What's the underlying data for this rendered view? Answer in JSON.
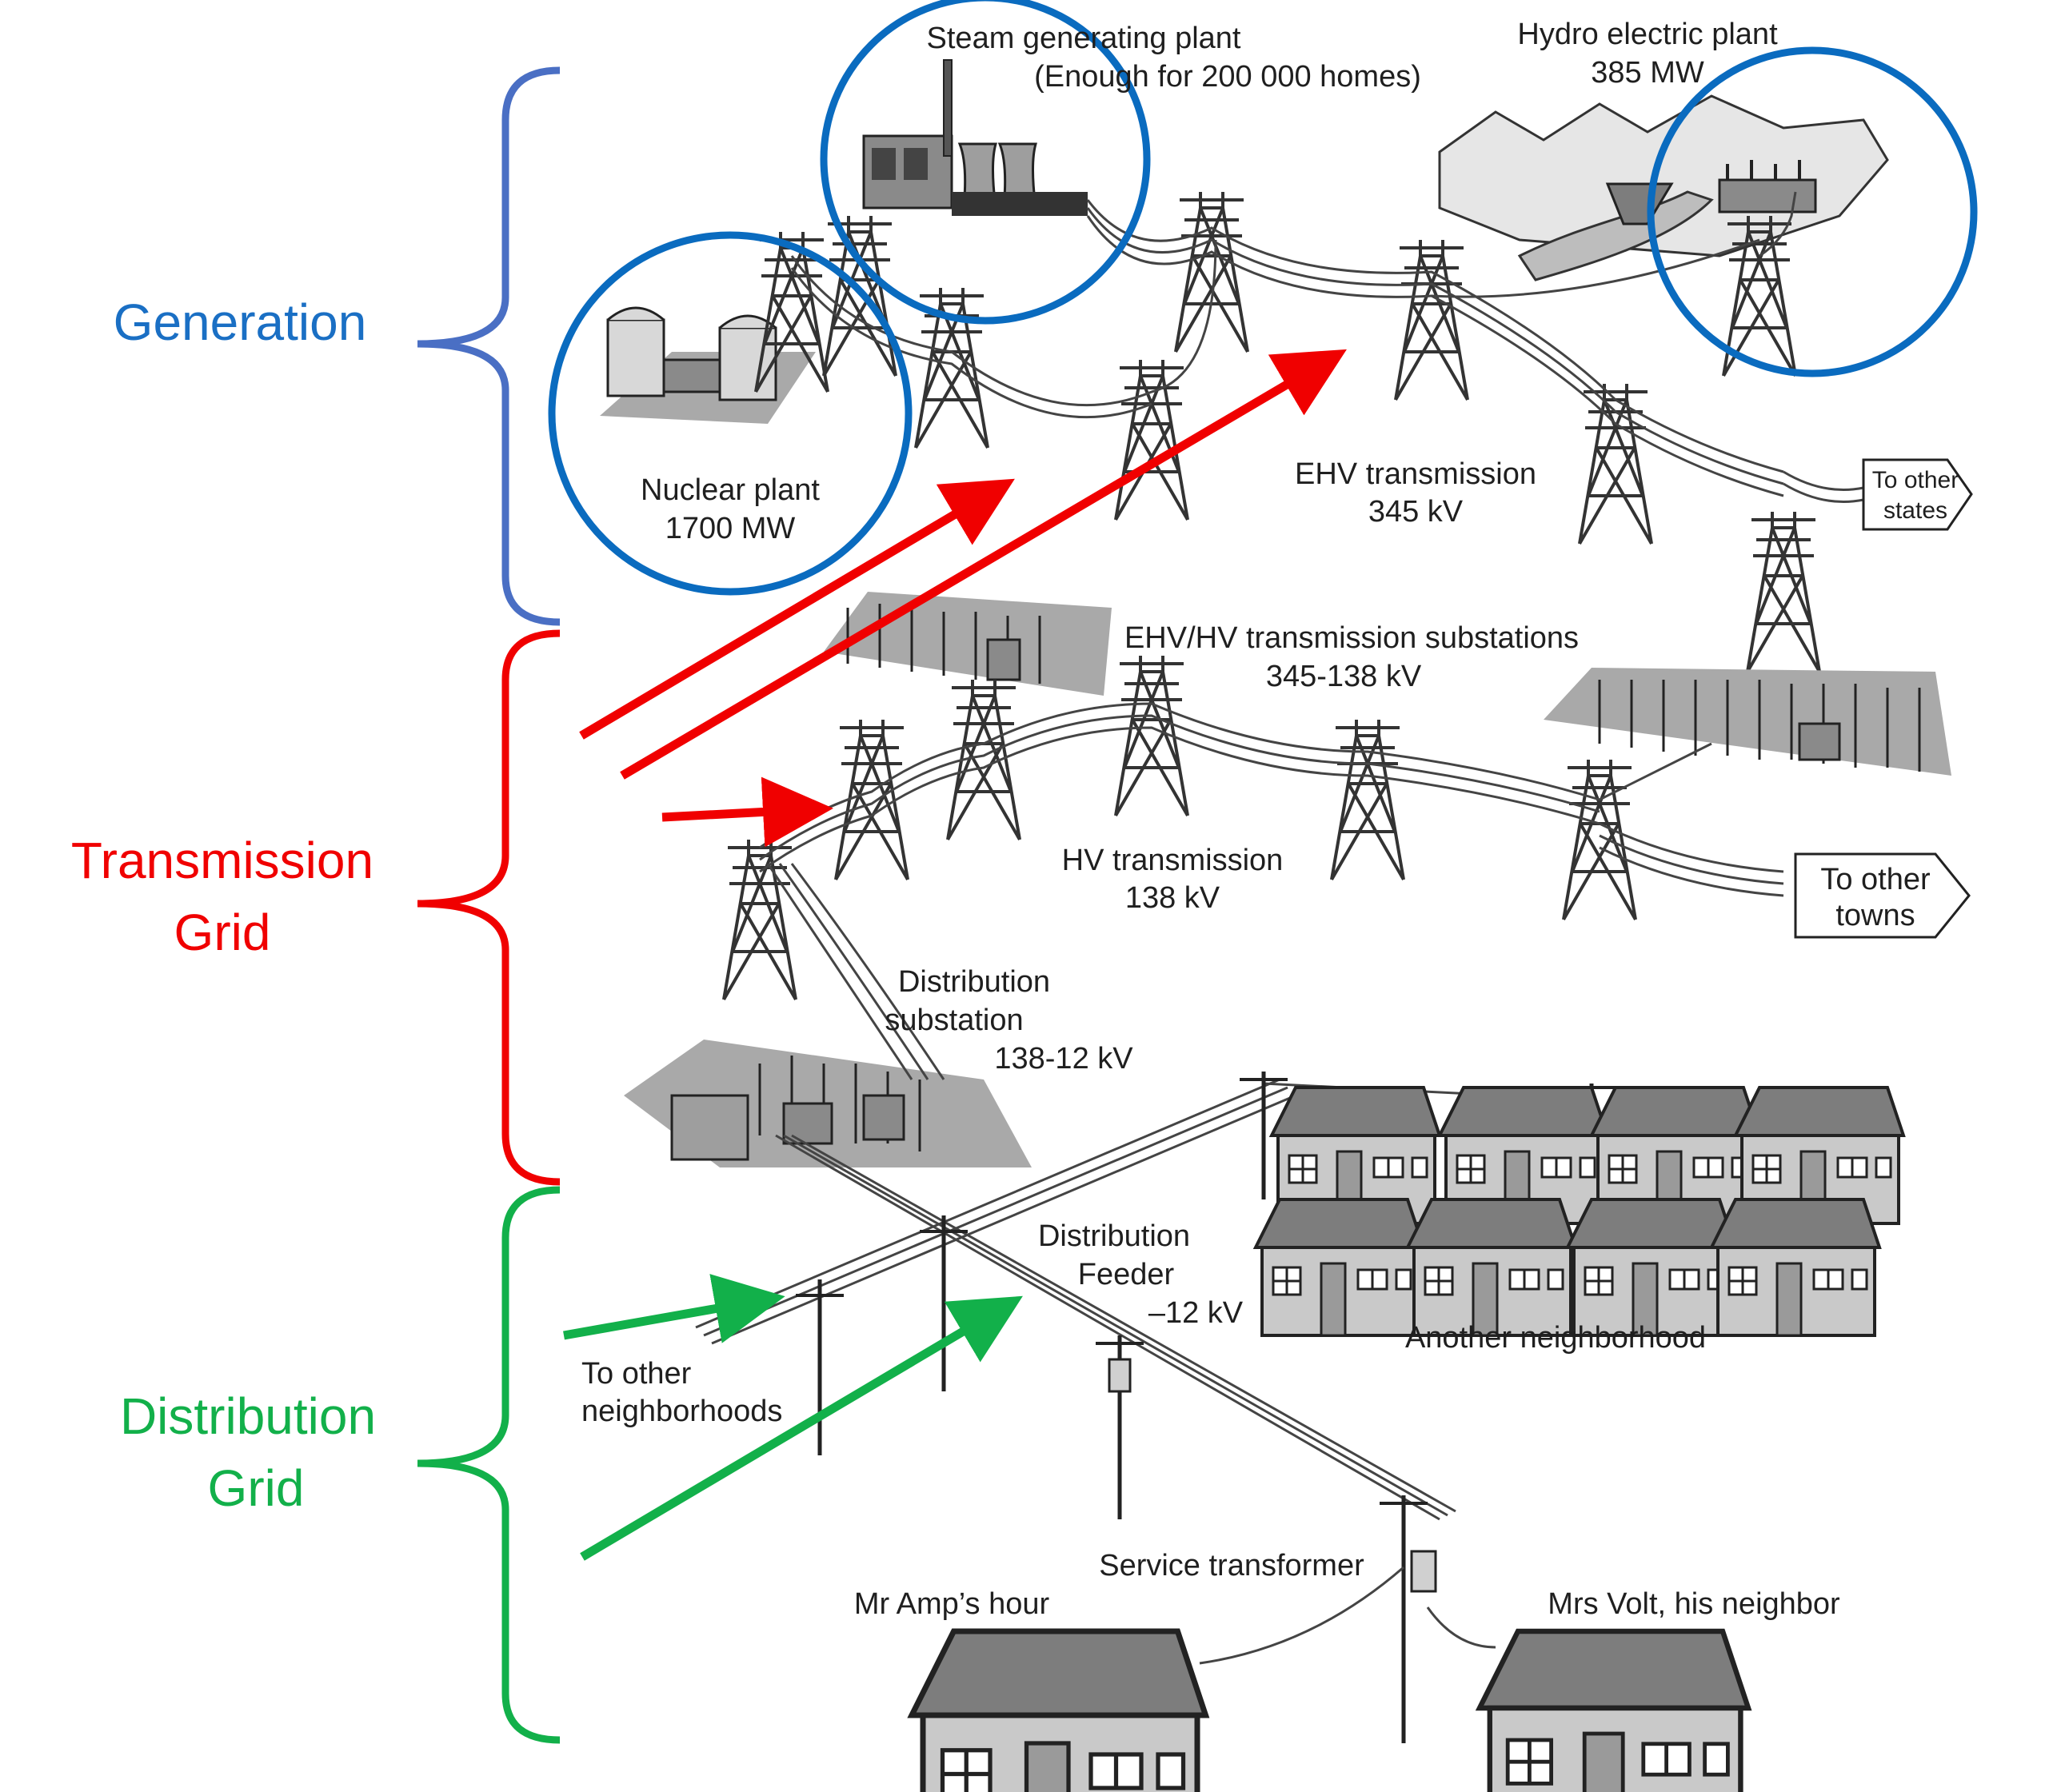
{
  "colors": {
    "generation": "#1a6fc4",
    "transmission": "#f00000",
    "distribution": "#12b04a",
    "circle": "#0a6bbf"
  },
  "groups": {
    "generation": {
      "label": "Generation"
    },
    "transmission": {
      "line1": "Transmission",
      "line2": "Grid"
    },
    "distribution": {
      "line1": "Distribution",
      "line2": "Grid"
    }
  },
  "plants": {
    "steam": {
      "line1": "Steam generating plant",
      "line2": "(Enough for 200 000 homes)"
    },
    "hydro": {
      "line1": "Hydro electric plant",
      "line2": "385 MW"
    },
    "nuclear": {
      "line1": "Nuclear plant",
      "line2": "1700 MW"
    }
  },
  "labels": {
    "ehv": {
      "line1": "EHV transmission",
      "line2": "345 kV"
    },
    "substations": {
      "line1": "EHV/HV transmission substations",
      "line2": "345-138 kV"
    },
    "hv": {
      "line1": "HV transmission",
      "line2": "138 kV"
    },
    "dist_sub": {
      "line1": "Distribution",
      "line2": "substation",
      "line3": "138-12 kV"
    },
    "feeder": {
      "line1": "Distribution",
      "line2": "Feeder",
      "line3": "–12 kV"
    },
    "other_neigh": {
      "line1": "To other",
      "line2": "neighborhoods"
    },
    "another_neigh": "Another neighborhood",
    "service_tx": "Service transformer",
    "mr_amp": "Mr Amp’s hour",
    "mrs_volt": "Mrs Volt, his neighbor",
    "to_states": {
      "line1": "To other",
      "line2": "states"
    },
    "to_towns": {
      "line1": "To other",
      "line2": "towns"
    }
  }
}
